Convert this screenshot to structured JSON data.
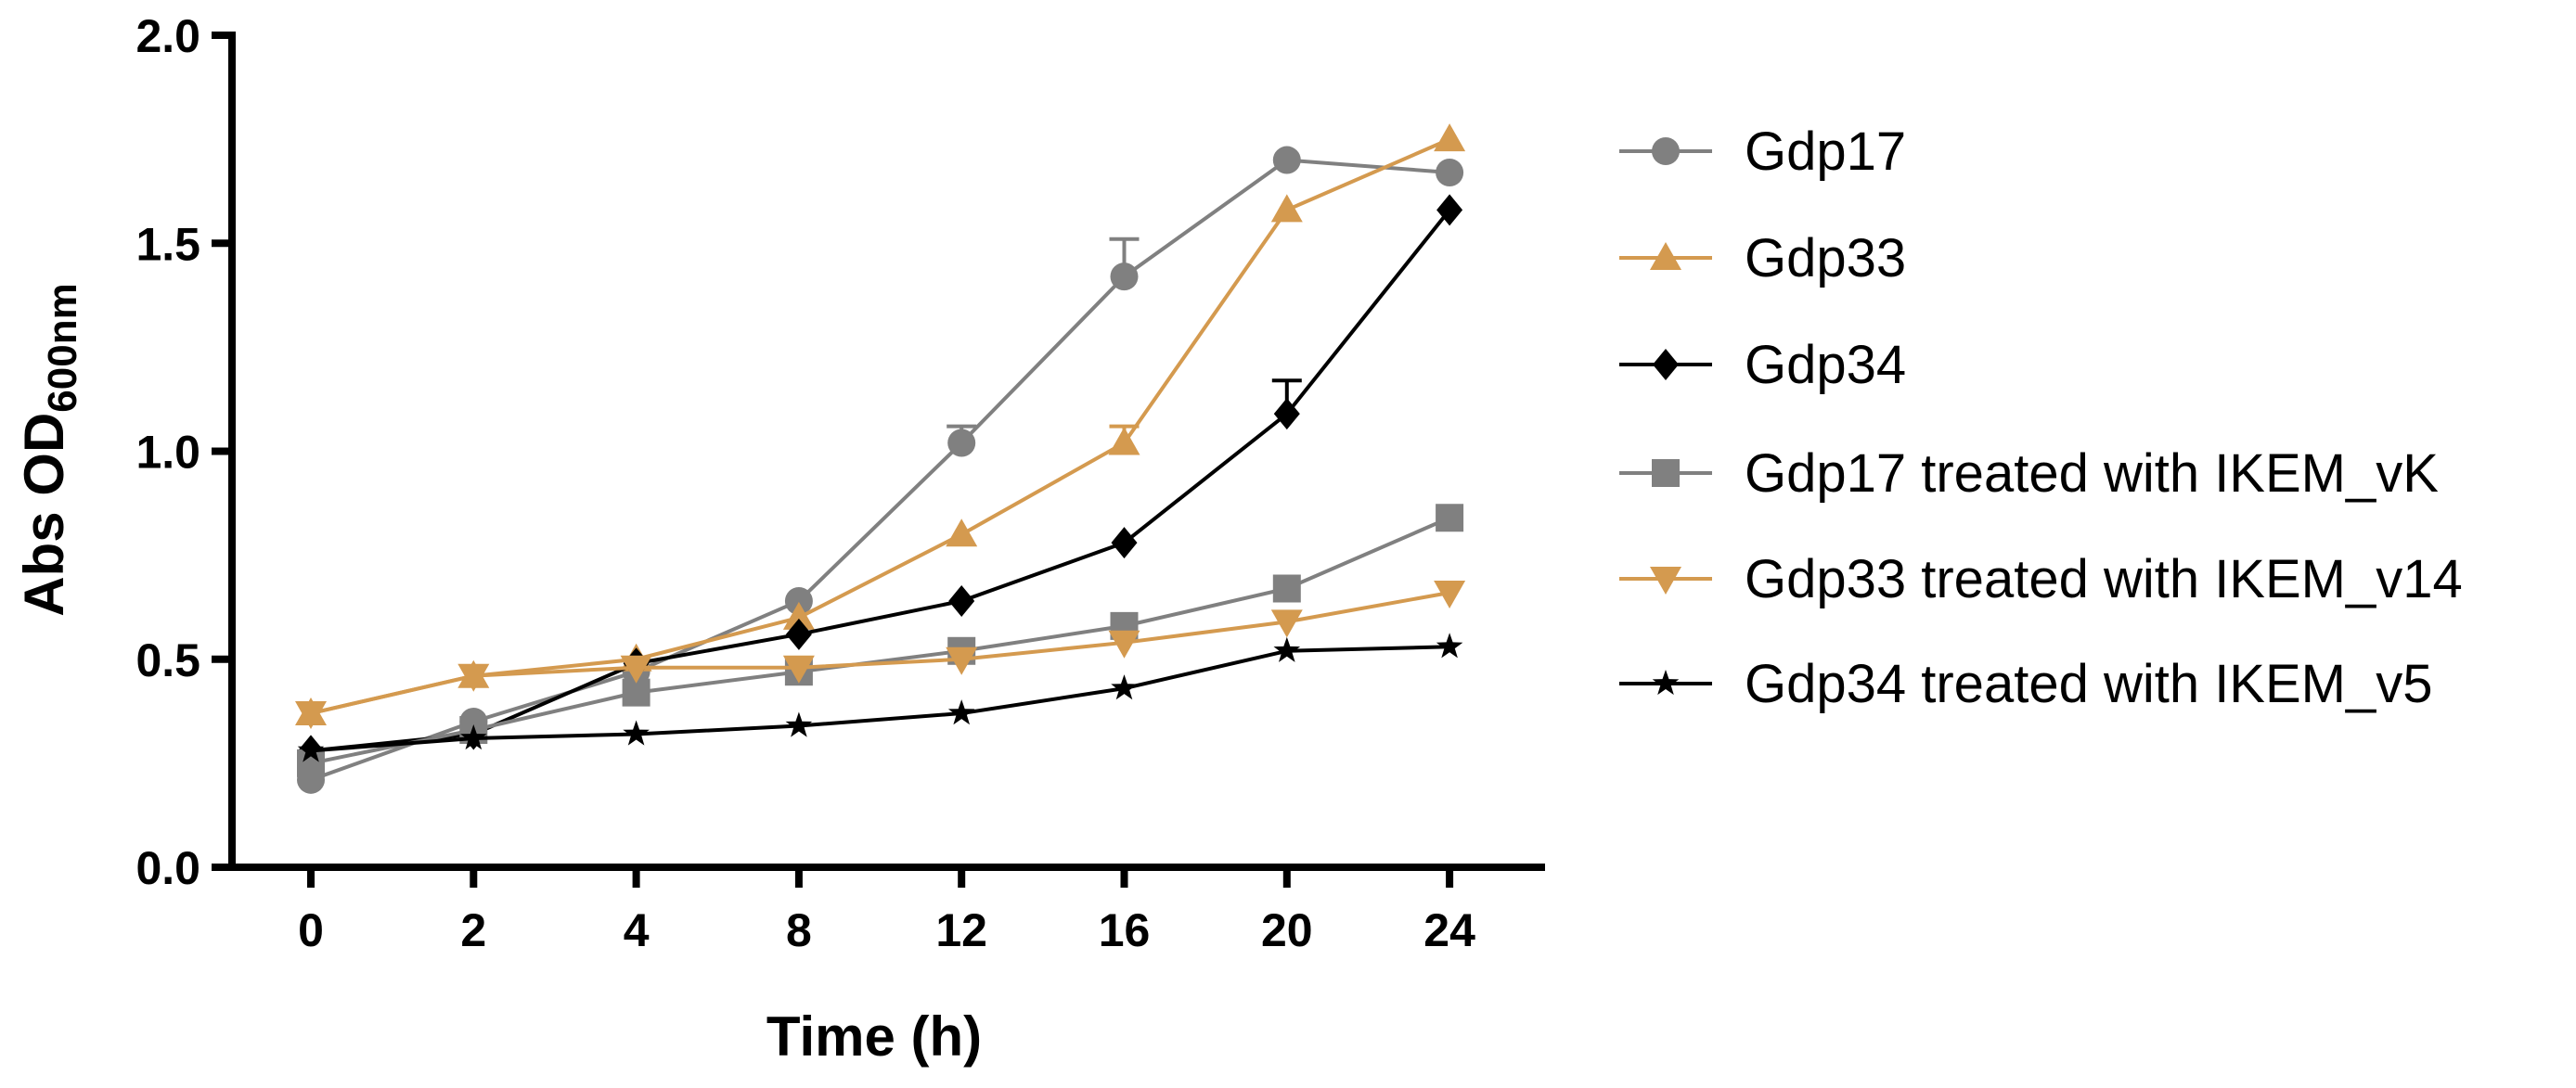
{
  "chart_data": {
    "type": "line",
    "title": "",
    "xlabel": "Time (h)",
    "ylabel": {
      "main": "Abs OD",
      "subscript": "600nm"
    },
    "categories": [
      "0",
      "2",
      "4",
      "8",
      "12",
      "16",
      "20",
      "24"
    ],
    "ylim": [
      0,
      2.0
    ],
    "yticks": [
      "0.0",
      "0.5",
      "1.0",
      "1.5",
      "2.0"
    ],
    "ytick_values": [
      0,
      0.5,
      1.0,
      1.5,
      2.0
    ],
    "grid": false,
    "legend_position": "right",
    "series": [
      {
        "name": "Gdp17",
        "color": "#808080",
        "marker": "circle",
        "values": [
          0.21,
          0.35,
          0.47,
          0.64,
          1.02,
          1.42,
          1.7,
          1.67
        ],
        "errors": [
          0,
          0,
          0,
          0,
          0.04,
          0.09,
          0,
          0
        ]
      },
      {
        "name": "Gdp33",
        "color": "#D49A4F",
        "marker": "triangle-up",
        "values": [
          0.37,
          0.46,
          0.5,
          0.6,
          0.8,
          1.02,
          1.58,
          1.75
        ],
        "errors": [
          0,
          0,
          0,
          0,
          0,
          0.04,
          0,
          0
        ]
      },
      {
        "name": "Gdp34",
        "color": "#000000",
        "marker": "diamond",
        "values": [
          0.28,
          0.32,
          0.49,
          0.56,
          0.64,
          0.78,
          1.09,
          1.58
        ],
        "errors": [
          0,
          0,
          0,
          0,
          0,
          0,
          0.08,
          0
        ]
      },
      {
        "name": "Gdp17 treated with IKEM_vK",
        "color": "#808080",
        "marker": "square",
        "values": [
          0.25,
          0.33,
          0.42,
          0.47,
          0.52,
          0.58,
          0.67,
          0.84
        ],
        "errors": [
          0,
          0,
          0,
          0,
          0,
          0,
          0,
          0
        ]
      },
      {
        "name": "Gdp33 treated with IKEM_v14",
        "color": "#D49A4F",
        "marker": "triangle-down",
        "values": [
          0.37,
          0.46,
          0.48,
          0.48,
          0.5,
          0.54,
          0.59,
          0.66
        ],
        "errors": [
          0,
          0,
          0,
          0,
          0,
          0,
          0,
          0
        ]
      },
      {
        "name": "Gdp34 treated with IKEM_v5",
        "color": "#000000",
        "marker": "star",
        "values": [
          0.28,
          0.31,
          0.32,
          0.34,
          0.37,
          0.43,
          0.52,
          0.53
        ],
        "errors": [
          0,
          0,
          0,
          0,
          0,
          0,
          0,
          0
        ]
      }
    ]
  }
}
